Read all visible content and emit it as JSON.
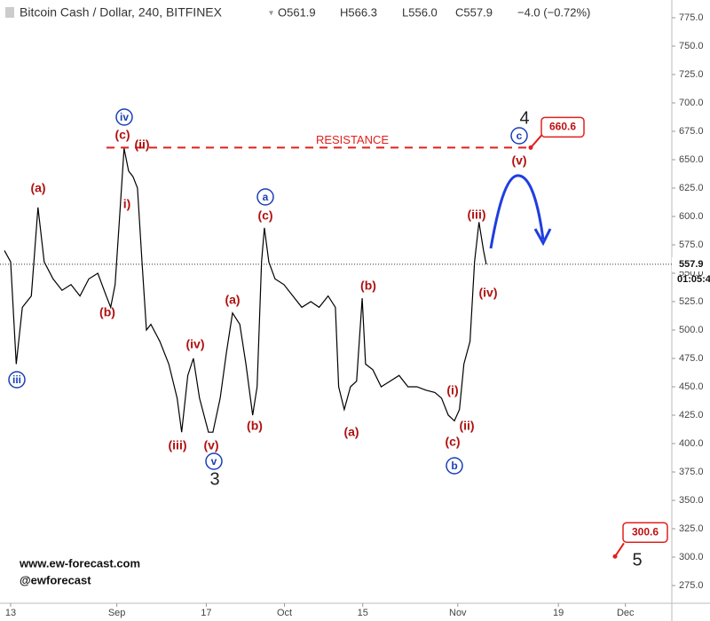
{
  "chart_data": {
    "type": "line",
    "title": "Bitcoin Cash / Dollar, 240, BITFINEX",
    "header_stats": [
      "O561.9",
      "H566.3",
      "L556.0",
      "C557.9",
      "−4.0 (−0.72%)"
    ],
    "x": [
      -1.1,
      0,
      1,
      2.1,
      3.7,
      4.9,
      6,
      7.6,
      9.2,
      10.8,
      12.4,
      14,
      15.6,
      17.1,
      17.9,
      18.7,
      19.5,
      20.3,
      21.1,
      21.9,
      22.7,
      23.5,
      24.3,
      25.1,
      26.7,
      28.3,
      29.8,
      30.6,
      31.7,
      32.7,
      33.8,
      35.4,
      36.2,
      37.5,
      38.6,
      39.7,
      41,
      42.1,
      43.3,
      44.1,
      44.9,
      45.4,
      46.2,
      47.3,
      48.9,
      50.5,
      52.1,
      53.7,
      55.2,
      56.8,
      58.1,
      58.7,
      59.7,
      60.8,
      61.9,
      62.9,
      63.5,
      64.8,
      66.3,
      67.9,
      69.5,
      71.1,
      72.7,
      74.3,
      75.9,
      77.1,
      78.3,
      79.4,
      80.3,
      81.1,
      82.2,
      83,
      83.8,
      84.6,
      85.1
    ],
    "series": [
      {
        "color": "#000000",
        "values": [
          570,
          560,
          470,
          520,
          530,
          608,
          560,
          545,
          535,
          540,
          530,
          545,
          550,
          530,
          520,
          540,
          600,
          660,
          640,
          635,
          625,
          560,
          500,
          505,
          490,
          470,
          440,
          410,
          460,
          475,
          440,
          410,
          410,
          440,
          480,
          515,
          505,
          470,
          425,
          450,
          560,
          590,
          560,
          545,
          540,
          530,
          520,
          525,
          520,
          530,
          520,
          450,
          430,
          450,
          455,
          528,
          470,
          465,
          450,
          455,
          460,
          450,
          450,
          447,
          445,
          440,
          425,
          420,
          430,
          470,
          490,
          560,
          595,
          570,
          557.9
        ]
      }
    ],
    "xlim": [
      -1.9,
      118.3
    ],
    "xticks": [
      {
        "value": 0,
        "label": "13"
      },
      {
        "value": 19,
        "label": "Sep"
      },
      {
        "value": 35,
        "label": "17"
      },
      {
        "value": 49,
        "label": "Oct"
      },
      {
        "value": 63,
        "label": "15"
      },
      {
        "value": 80,
        "label": "Nov"
      },
      {
        "value": 98,
        "label": "19"
      },
      {
        "value": 110,
        "label": "Dec"
      }
    ],
    "ylim": [
      259.4,
      790.6
    ],
    "yticks": [
      {
        "value": 275,
        "label": "275.0"
      },
      {
        "value": 300,
        "label": "300.0"
      },
      {
        "value": 325,
        "label": "325.0"
      },
      {
        "value": 350,
        "label": "350.0"
      },
      {
        "value": 375,
        "label": "375.0"
      },
      {
        "value": 400,
        "label": "400.0"
      },
      {
        "value": 425,
        "label": "425.0"
      },
      {
        "value": 450,
        "label": "450.0"
      },
      {
        "value": 475,
        "label": "475.0"
      },
      {
        "value": 500,
        "label": "500.0"
      },
      {
        "value": 525,
        "label": "525.0"
      },
      {
        "value": 550,
        "label": "550.0"
      },
      {
        "value": 575,
        "label": "575.0"
      },
      {
        "value": 600,
        "label": "600.0"
      },
      {
        "value": 625,
        "label": "625.0"
      },
      {
        "value": 650,
        "label": "650.0"
      },
      {
        "value": 675,
        "label": "675.0"
      },
      {
        "value": 700,
        "label": "700.0"
      },
      {
        "value": 725,
        "label": "725.0"
      },
      {
        "value": 750,
        "label": "750.0"
      },
      {
        "value": 775,
        "label": "775.0"
      }
    ],
    "last_price": 557.9,
    "countdown": "01:05:4",
    "resistance": {
      "label": "RESISTANCE",
      "value": 660.6
    },
    "target": 300.6,
    "annotations": [
      {
        "text": "iii",
        "color": "#1a3fb5",
        "circled": true
      },
      {
        "text": "(a)",
        "color": "#b01010"
      },
      {
        "text": "(b)",
        "color": "#b01010"
      },
      {
        "text": "iv",
        "color": "#1a3fb5",
        "circled": true
      },
      {
        "text": "(c)",
        "color": "#b01010"
      },
      {
        "text": "(ii)",
        "color": "#b01010"
      },
      {
        "text": "i)",
        "color": "#b01010"
      },
      {
        "text": "(iii)",
        "color": "#b01010"
      },
      {
        "text": "(iv)",
        "color": "#b01010"
      },
      {
        "text": "(v)",
        "color": "#b01010"
      },
      {
        "text": "v",
        "color": "#1a3fb5",
        "circled": true
      },
      {
        "text": "3",
        "color": "#222222",
        "large": true
      },
      {
        "text": "(a)",
        "color": "#b01010"
      },
      {
        "text": "(b)",
        "color": "#b01010"
      },
      {
        "text": "a",
        "color": "#1a3fb5",
        "circled": true
      },
      {
        "text": "(c)",
        "color": "#b01010"
      },
      {
        "text": "(b)",
        "color": "#b01010"
      },
      {
        "text": "(a)",
        "color": "#b01010"
      },
      {
        "text": "(i)",
        "color": "#b01010"
      },
      {
        "text": "(ii)",
        "color": "#b01010"
      },
      {
        "text": "(c)",
        "color": "#b01010"
      },
      {
        "text": "b",
        "color": "#1a3fb5",
        "circled": true
      },
      {
        "text": "(iii)",
        "color": "#b01010"
      },
      {
        "text": "(iv)",
        "color": "#b01010"
      },
      {
        "text": "4",
        "color": "#222222",
        "large": true
      },
      {
        "text": "c",
        "color": "#1a3fb5",
        "circled": true
      },
      {
        "text": "(v)",
        "color": "#b01010"
      },
      {
        "text": "5",
        "color": "#222222",
        "large": true
      }
    ],
    "watermark": [
      "www.ew-forecast.com",
      "@ewforecast"
    ]
  }
}
